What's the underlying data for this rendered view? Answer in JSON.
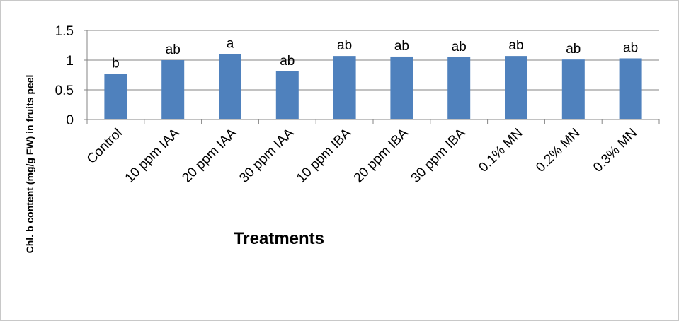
{
  "chart_data": {
    "type": "bar",
    "title": "",
    "xlabel": "Treatments",
    "ylabel": "Chl. b  content (mg/g FW) in fruits peel",
    "categories": [
      "Control",
      "10 ppm IAA",
      "20 ppm IAA",
      "30 ppm IAA",
      "10 ppm IBA",
      "20 ppm IBA",
      "30 ppm IBA",
      "0.1% MN",
      "0.2% MN",
      "0.3% MN"
    ],
    "values": [
      0.77,
      1.0,
      1.1,
      0.81,
      1.07,
      1.06,
      1.05,
      1.07,
      1.01,
      1.03
    ],
    "annotations": [
      "b",
      "ab",
      "a",
      "ab",
      "ab",
      "ab",
      "ab",
      "ab",
      "ab",
      "ab"
    ],
    "ylim": [
      0,
      1.5
    ],
    "yticks": [
      "0",
      "0.5",
      "1",
      "1.5"
    ],
    "grid": true,
    "legend": "none",
    "bar_color": "#4f81bd"
  }
}
